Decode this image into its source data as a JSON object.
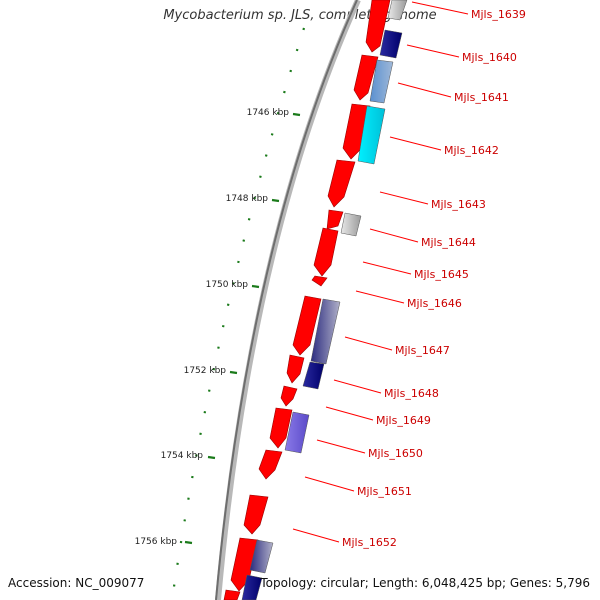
{
  "map": {
    "title": "Mycobacterium sp. JLS, complete genome",
    "accession": "Accession: NC_009077",
    "summary": "Topology: circular; Length: 6,048,425 bp; Genes: 5,796"
  },
  "scale": {
    "unit": "kbp",
    "ticks": [
      "1746 kbp",
      "1748 kbp",
      "1750 kbp",
      "1752 kbp",
      "1754 kbp",
      "1756 kbp"
    ]
  },
  "genes": [
    "Mjls_1639",
    "Mjls_1640",
    "Mjls_1641",
    "Mjls_1642",
    "Mjls_1643",
    "Mjls_1644",
    "Mjls_1645",
    "Mjls_1646",
    "Mjls_1647",
    "Mjls_1648",
    "Mjls_1649",
    "Mjls_1650",
    "Mjls_1651",
    "Mjls_1652"
  ],
  "colors": {
    "gene": "#ff0000",
    "label": "#cc0000",
    "tick": "#1a7a1a",
    "backbone": "#888888"
  }
}
